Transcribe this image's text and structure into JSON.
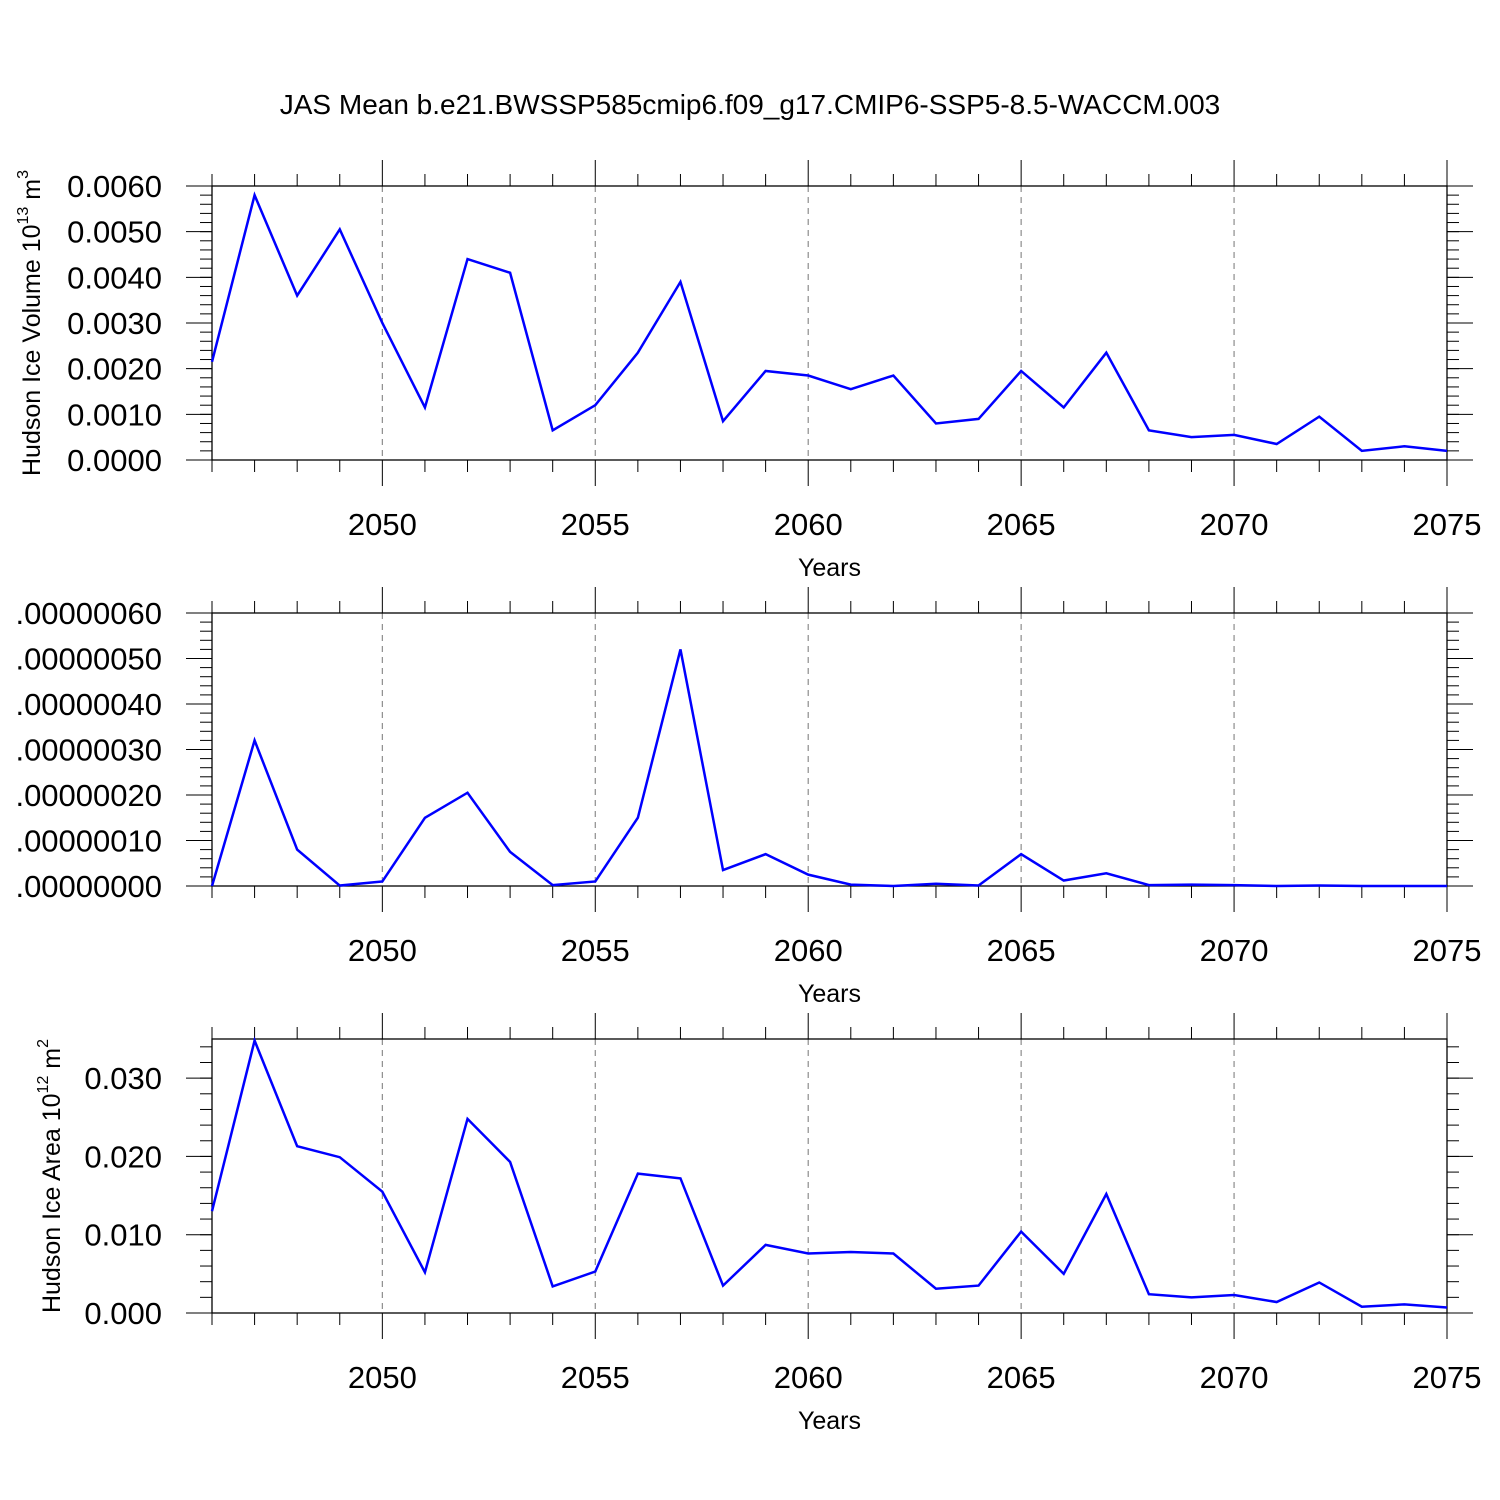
{
  "figure_title": "JAS Mean b.e21.BWSSP585cmip6.f09_g17.CMIP6-SSP5-8.5-WACCM.003",
  "chart_data": [
    {
      "type": "line",
      "ylabel": "Hudson Ice Volume",
      "ylabel_unit": "10",
      "ylabel_unit_exp": "13",
      "ylabel_unit_tail": " m",
      "ylabel_unit_tail_exp": "3",
      "xlabel": "Years",
      "xlim": [
        2046,
        2075
      ],
      "ylim": [
        0,
        0.006
      ],
      "yticks": [
        0.0,
        0.001,
        0.002,
        0.003,
        0.004,
        0.005,
        0.006
      ],
      "ytick_labels": [
        "0.0000",
        "0.0010",
        "0.0020",
        "0.0030",
        "0.0040",
        "0.0050",
        "0.0060"
      ],
      "xticks": [
        2050,
        2055,
        2060,
        2065,
        2070,
        2075
      ],
      "xtick_labels": [
        "2050",
        "2055",
        "2060",
        "2065",
        "2070",
        "2075"
      ],
      "line_color": "#0000ff",
      "grid": "vertical dashed at major x ticks",
      "x": [
        2046,
        2047,
        2048,
        2049,
        2050,
        2051,
        2052,
        2053,
        2054,
        2055,
        2056,
        2057,
        2058,
        2059,
        2060,
        2061,
        2062,
        2063,
        2064,
        2065,
        2066,
        2067,
        2068,
        2069,
        2070,
        2071,
        2072,
        2073,
        2074,
        2075
      ],
      "y": [
        0.00215,
        0.0058,
        0.0036,
        0.00505,
        0.003,
        0.00115,
        0.0044,
        0.0041,
        0.00065,
        0.0012,
        0.00235,
        0.0039,
        0.00085,
        0.00195,
        0.00185,
        0.00155,
        0.00185,
        0.0008,
        0.0009,
        0.00195,
        0.00115,
        0.00235,
        0.00065,
        0.0005,
        0.00055,
        0.00035,
        0.00095,
        0.0002,
        0.0003,
        0.0002
      ]
    },
    {
      "type": "line",
      "ylabel": "",
      "xlabel": "Years",
      "xlim": [
        2046,
        2075
      ],
      "ylim": [
        0,
        6e-07
      ],
      "yticks": [
        0.0,
        1e-07,
        2e-07,
        3e-07,
        4e-07,
        5e-07,
        6e-07
      ],
      "ytick_labels": [
        ".00000000",
        ".00000010",
        ".00000020",
        ".00000030",
        ".00000040",
        ".00000050",
        ".00000060"
      ],
      "xticks": [
        2050,
        2055,
        2060,
        2065,
        2070,
        2075
      ],
      "xtick_labels": [
        "2050",
        "2055",
        "2060",
        "2065",
        "2070",
        "2075"
      ],
      "line_color": "#0000ff",
      "grid": "vertical dashed at major x ticks",
      "x": [
        2046,
        2047,
        2048,
        2049,
        2050,
        2051,
        2052,
        2053,
        2054,
        2055,
        2056,
        2057,
        2058,
        2059,
        2060,
        2061,
        2062,
        2063,
        2064,
        2065,
        2066,
        2067,
        2068,
        2069,
        2070,
        2071,
        2072,
        2073,
        2074,
        2075
      ],
      "y": [
        0.0,
        3.2e-07,
        8e-08,
        1e-09,
        1e-08,
        1.5e-07,
        2.05e-07,
        7.5e-08,
        2e-09,
        1e-08,
        1.5e-07,
        5.2e-07,
        3.5e-08,
        7e-08,
        2.5e-08,
        3e-09,
        0.0,
        5e-09,
        1e-09,
        7e-08,
        1.2e-08,
        2.8e-08,
        2e-09,
        3e-09,
        2e-09,
        0.0,
        1e-09,
        0.0,
        0.0,
        0.0
      ]
    },
    {
      "type": "line",
      "ylabel": "Hudson Ice Area",
      "ylabel_unit": "10",
      "ylabel_unit_exp": "12",
      "ylabel_unit_tail": " m",
      "ylabel_unit_tail_exp": "2",
      "xlabel": "Years",
      "xlim": [
        2046,
        2075
      ],
      "ylim": [
        0,
        0.035
      ],
      "yticks": [
        0.0,
        0.01,
        0.02,
        0.03
      ],
      "ytick_labels": [
        "0.000",
        "0.010",
        "0.020",
        "0.030"
      ],
      "xticks": [
        2050,
        2055,
        2060,
        2065,
        2070,
        2075
      ],
      "xtick_labels": [
        "2050",
        "2055",
        "2060",
        "2065",
        "2070",
        "2075"
      ],
      "line_color": "#0000ff",
      "grid": "vertical dashed at major x ticks",
      "x": [
        2046,
        2047,
        2048,
        2049,
        2050,
        2051,
        2052,
        2053,
        2054,
        2055,
        2056,
        2057,
        2058,
        2059,
        2060,
        2061,
        2062,
        2063,
        2064,
        2065,
        2066,
        2067,
        2068,
        2069,
        2070,
        2071,
        2072,
        2073,
        2074,
        2075
      ],
      "y": [
        0.013,
        0.0348,
        0.0213,
        0.0199,
        0.0155,
        0.0052,
        0.0248,
        0.0193,
        0.0034,
        0.0053,
        0.0178,
        0.0172,
        0.0035,
        0.0087,
        0.0076,
        0.0078,
        0.0076,
        0.0031,
        0.0035,
        0.0104,
        0.005,
        0.0152,
        0.0024,
        0.002,
        0.0023,
        0.0014,
        0.0039,
        0.0008,
        0.0011,
        0.0007
      ]
    }
  ]
}
